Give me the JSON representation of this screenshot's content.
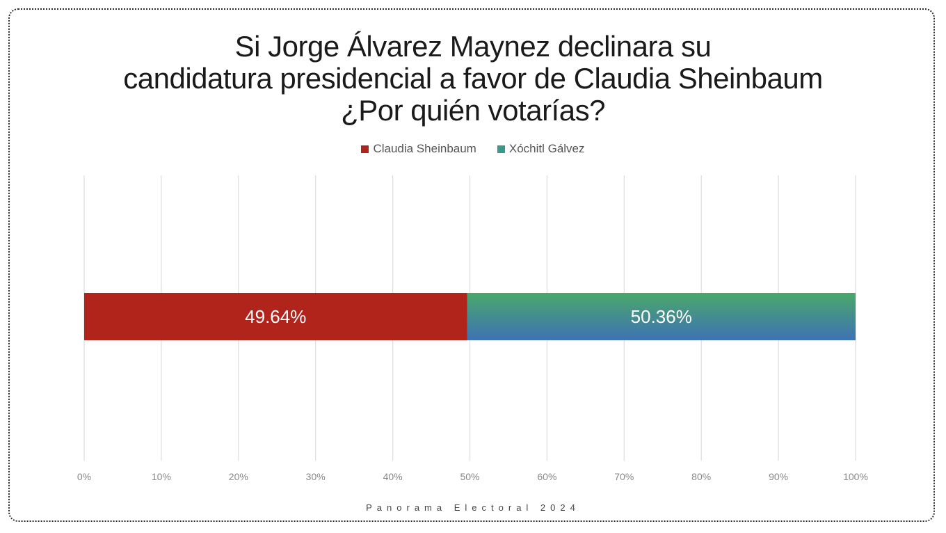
{
  "title_lines": [
    "Si Jorge Álvarez Maynez declinara su",
    "candidatura presidencial a favor de Claudia Sheinbaum",
    "¿Por quién votarías?"
  ],
  "footer": "Panorama Electoral 2024",
  "colors": {
    "sheinbaum": "#b0241b",
    "galvez_top": "#4aa86a",
    "galvez_bottom": "#3e72b4",
    "legend_galvez": "#3a9a8a",
    "grid": "#dddddd",
    "tick": "#888888",
    "label": "#ffffff"
  },
  "chart_data": {
    "type": "bar",
    "orientation": "horizontal",
    "stacked": true,
    "title": "Si Jorge Álvarez Maynez declinara su candidatura presidencial a favor de Claudia Sheinbaum ¿Por quién votarías?",
    "series": [
      {
        "name": "Claudia Sheinbaum",
        "values": [
          49.64
        ],
        "label": "49.64%"
      },
      {
        "name": "Xóchitl Gálvez",
        "values": [
          50.36
        ],
        "label": "50.36%"
      }
    ],
    "xlim": [
      0,
      100
    ],
    "xticks": [
      "0%",
      "10%",
      "20%",
      "30%",
      "40%",
      "50%",
      "60%",
      "70%",
      "80%",
      "90%",
      "100%"
    ],
    "grid": true,
    "legend": "top-center"
  }
}
